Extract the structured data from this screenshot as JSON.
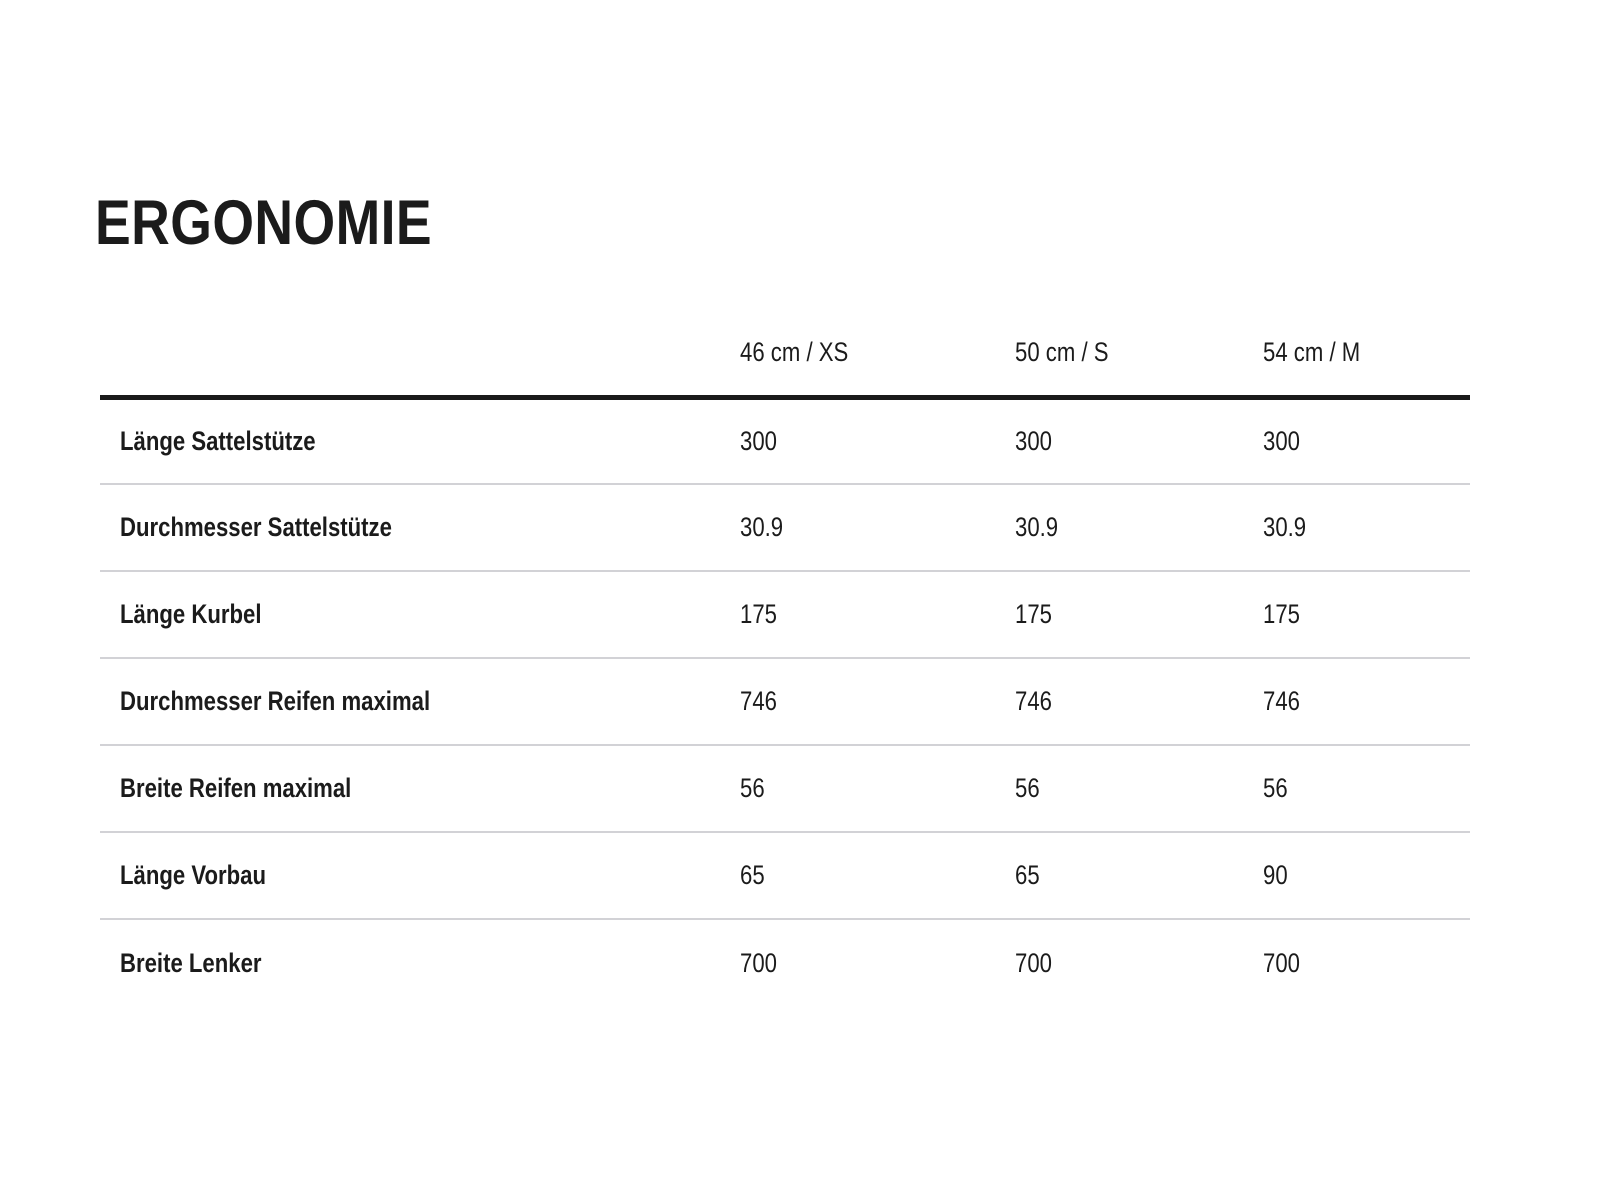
{
  "section": {
    "title": "ERGONOMIE"
  },
  "table": {
    "columns": [
      "46 cm / XS",
      "50 cm / S",
      "54 cm / M"
    ],
    "rows": [
      {
        "label": "Länge Sattelstütze",
        "values": [
          "300",
          "300",
          "300"
        ]
      },
      {
        "label": "Durchmesser Sattelstütze",
        "values": [
          "30.9",
          "30.9",
          "30.9"
        ]
      },
      {
        "label": "Länge Kurbel",
        "values": [
          "175",
          "175",
          "175"
        ]
      },
      {
        "label": "Durchmesser Reifen maximal",
        "values": [
          "746",
          "746",
          "746"
        ]
      },
      {
        "label": "Breite Reifen maximal",
        "values": [
          "56",
          "56",
          "56"
        ]
      },
      {
        "label": "Länge Vorbau",
        "values": [
          "65",
          "65",
          "90"
        ]
      },
      {
        "label": "Breite Lenker",
        "values": [
          "700",
          "700",
          "700"
        ]
      }
    ]
  },
  "colors": {
    "text": "#1b1b1b",
    "header_rule": "#1a1a1a",
    "row_divider": "#d2d2d6",
    "background": "#ffffff"
  }
}
